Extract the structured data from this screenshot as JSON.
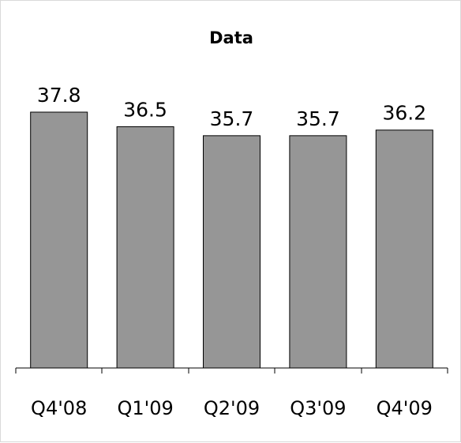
{
  "chart_data": {
    "type": "bar",
    "title": "Data",
    "xlabel": "",
    "ylabel": "",
    "categories": [
      "Q4'08",
      "Q1'09",
      "Q2'09",
      "Q3'09",
      "Q4'09"
    ],
    "values": [
      37.8,
      36.5,
      35.7,
      35.7,
      36.2
    ],
    "data_labels": [
      "37.8",
      "36.5",
      "35.7",
      "35.7",
      "36.2"
    ],
    "ylim": [
      15,
      39
    ],
    "grid": false,
    "legend": "none",
    "colors": {
      "bar_fill": "#969696",
      "bar_stroke": "#000000",
      "axis": "#000000",
      "border": "#d9d9d9"
    }
  }
}
